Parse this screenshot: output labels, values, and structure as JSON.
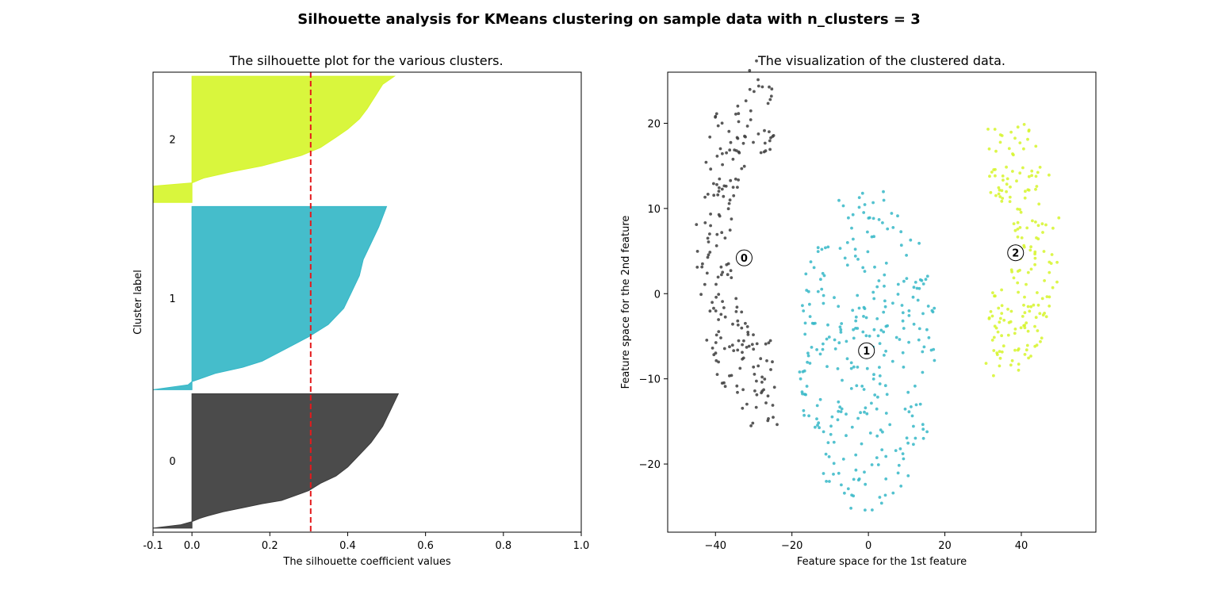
{
  "figure_title": "Silhouette analysis for KMeans clustering on sample data with n_clusters = 3",
  "colors": {
    "cluster_0": "#3c3c3c",
    "cluster_1": "#35b7c7",
    "cluster_2": "#d6f52c",
    "threshold_line": "#e41a1c",
    "axes": "#000000"
  },
  "chart_data": [
    {
      "type": "area",
      "title": "The silhouette plot for the various clusters.",
      "xlabel": "The silhouette coefficient values",
      "ylabel": "Cluster label",
      "xlim": [
        -0.1,
        1.0
      ],
      "ylim": [
        0,
        1130
      ],
      "xticks": [
        "-0.1",
        "0.0",
        "0.2",
        "0.4",
        "0.6",
        "0.8",
        "1.0"
      ],
      "xtick_values": [
        -0.1,
        0.0,
        0.2,
        0.4,
        0.6,
        0.8,
        1.0
      ],
      "yticks": [],
      "grid": false,
      "threshold": {
        "value": 0.305,
        "style": "dashed"
      },
      "series": [
        {
          "name": "0",
          "label": "0",
          "color": "#3c3c3c",
          "y_lower": 10,
          "y_upper": 340,
          "profile": [
            [
              0,
              -0.1
            ],
            [
              8,
              -0.03
            ],
            [
              16,
              0.0
            ],
            [
              24,
              0.02
            ],
            [
              30,
              0.04
            ],
            [
              40,
              0.08
            ],
            [
              50,
              0.13
            ],
            [
              60,
              0.18
            ],
            [
              68,
              0.23
            ],
            [
              78,
              0.26
            ],
            [
              92,
              0.3
            ],
            [
              110,
              0.33
            ],
            [
              128,
              0.37
            ],
            [
              150,
              0.4
            ],
            [
              180,
              0.43
            ],
            [
              210,
              0.46
            ],
            [
              250,
              0.49
            ],
            [
              290,
              0.51
            ],
            [
              330,
              0.53
            ]
          ]
        },
        {
          "name": "1",
          "label": "1",
          "color": "#35b7c7",
          "y_lower": 350,
          "y_upper": 800,
          "profile": [
            [
              0,
              -0.1
            ],
            [
              12,
              -0.01
            ],
            [
              20,
              0.0
            ],
            [
              40,
              0.06
            ],
            [
              55,
              0.13
            ],
            [
              70,
              0.18
            ],
            [
              90,
              0.22
            ],
            [
              110,
              0.26
            ],
            [
              130,
              0.3
            ],
            [
              160,
              0.35
            ],
            [
              200,
              0.39
            ],
            [
              240,
              0.41
            ],
            [
              280,
              0.43
            ],
            [
              320,
              0.44
            ],
            [
              360,
              0.46
            ],
            [
              400,
              0.48
            ],
            [
              450,
              0.5
            ]
          ]
        },
        {
          "name": "2",
          "label": "2",
          "color": "#d6f52c",
          "y_lower": 810,
          "y_upper": 1120,
          "profile": [
            [
              0,
              -0.1
            ],
            [
              40,
              -0.1
            ],
            [
              48,
              0.0
            ],
            [
              60,
              0.03
            ],
            [
              75,
              0.1
            ],
            [
              90,
              0.18
            ],
            [
              100,
              0.22
            ],
            [
              115,
              0.28
            ],
            [
              135,
              0.33
            ],
            [
              160,
              0.37
            ],
            [
              180,
              0.4
            ],
            [
              205,
              0.43
            ],
            [
              230,
              0.45
            ],
            [
              260,
              0.47
            ],
            [
              290,
              0.49
            ],
            [
              310,
              0.52
            ]
          ]
        }
      ]
    },
    {
      "type": "scatter",
      "title": "The visualization of the clustered data.",
      "xlabel": "Feature space for the 1st feature",
      "ylabel": "Feature space for the 2nd feature",
      "xlim": [
        -52.5,
        59.5
      ],
      "ylim": [
        -28,
        26
      ],
      "xticks": [
        "−40",
        "−20",
        "0",
        "20",
        "40"
      ],
      "xtick_values": [
        -40,
        -20,
        0,
        20,
        40
      ],
      "yticks": [
        "−20",
        "−10",
        "0",
        "10",
        "20"
      ],
      "ytick_values": [
        -20,
        -10,
        0,
        10,
        20
      ],
      "grid": false,
      "clusters": [
        {
          "name": "0",
          "color": "#3c3c3c",
          "center": [
            -32.5,
            4.2
          ],
          "spread": [
            8.5,
            9.5
          ],
          "count": 210,
          "seed": 11,
          "shape": "left-arc"
        },
        {
          "name": "1",
          "color": "#35b7c7",
          "center": [
            -0.5,
            -6.7
          ],
          "spread": [
            10.5,
            11.0
          ],
          "count": 300,
          "seed": 23,
          "shape": "blob"
        },
        {
          "name": "2",
          "color": "#d6f52c",
          "center": [
            38.5,
            4.8
          ],
          "spread": [
            8.5,
            9.0
          ],
          "count": 190,
          "seed": 37,
          "shape": "right-arc"
        }
      ],
      "center_labels": [
        "0",
        "1",
        "2"
      ]
    }
  ]
}
